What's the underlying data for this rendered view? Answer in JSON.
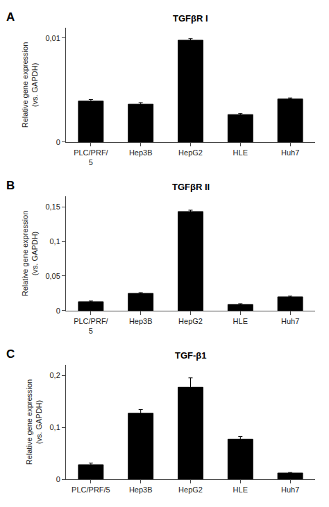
{
  "chart_data": [
    {
      "type": "bar",
      "title": "TGFβR I",
      "annotation": "A",
      "categories": [
        "PLC/PRF/\n5",
        "Hep3B",
        "HepG2",
        "HLE",
        "Huh7"
      ],
      "values": [
        0.00395,
        0.00365,
        0.0098,
        0.00265,
        0.00415
      ],
      "errors": [
        0.00015,
        0.00015,
        0.00015,
        0.0001,
        0.0001
      ],
      "color": "#000000",
      "y_label": "Relative gene expression\n(vs. GAPDH)",
      "ylim": [
        0,
        0.011
      ],
      "yticks": [
        0,
        {
          "value": 0.01,
          "label": "0,01"
        }
      ],
      "grid": false
    },
    {
      "type": "bar",
      "title": "TGFβR II",
      "annotation": "B",
      "categories": [
        "PLC/PRF/\n5",
        "Hep3B",
        "HepG2",
        "HLE",
        "Huh7"
      ],
      "values": [
        0.013,
        0.025,
        0.143,
        0.009,
        0.02
      ],
      "errors": [
        0.001,
        0.001,
        0.002,
        0.001,
        0.001
      ],
      "color": "#000000",
      "y_label": "Relative gene expression\n(vs. GAPDH)",
      "ylim": [
        0,
        0.165
      ],
      "yticks": [
        0,
        {
          "value": 0.05,
          "label": "0,05"
        },
        {
          "value": 0.1,
          "label": "0,1"
        },
        {
          "value": 0.15,
          "label": "0,15"
        }
      ],
      "grid": false
    },
    {
      "type": "bar",
      "title": "TGF-β1",
      "annotation": "C",
      "categories": [
        "PLC/PRF/5",
        "Hep3B",
        "HepG2",
        "HLE",
        "Huh7"
      ],
      "values": [
        0.028,
        0.127,
        0.177,
        0.077,
        0.012
      ],
      "errors": [
        0.003,
        0.007,
        0.018,
        0.005,
        0.001
      ],
      "color": "#000000",
      "y_label": "Relative gene expression\n(vs. GAPDH)",
      "ylim": [
        0,
        0.22
      ],
      "yticks": [
        0,
        {
          "value": 0.1,
          "label": "0,1"
        },
        {
          "value": 0.2,
          "label": "0,2"
        }
      ],
      "grid": false
    }
  ]
}
